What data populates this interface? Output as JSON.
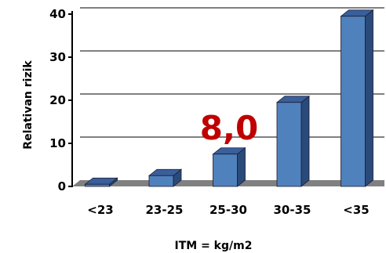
{
  "chart_data": {
    "type": "bar",
    "categories": [
      "<23",
      "23-25",
      "25-30",
      "30-35",
      "<35"
    ],
    "values": [
      0.5,
      2.5,
      7.5,
      19.5,
      39.5
    ],
    "title": "",
    "xlabel": "ITM = kg/m2",
    "ylabel": "Relativan rizik",
    "ylim": [
      0,
      40
    ],
    "yticks": [
      0,
      10,
      20,
      30,
      40
    ],
    "grid": true,
    "annotation": "8,0",
    "colors": {
      "bar_front": "#4f81bd",
      "bar_top": "#3a5f9a",
      "bar_side": "#2a4a7a",
      "floor": "#808080",
      "annotation": "#c00000"
    }
  }
}
